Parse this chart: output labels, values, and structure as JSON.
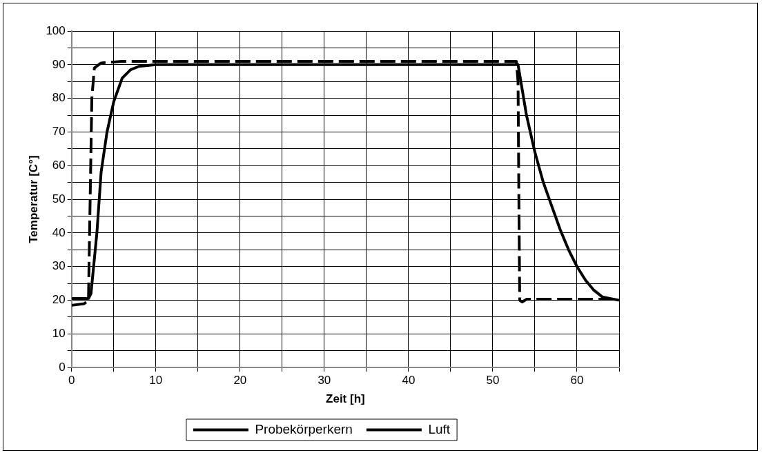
{
  "chart_data": {
    "type": "line",
    "xlabel": "Zeit [h]",
    "ylabel": "Temperatur [C°]",
    "xlim": [
      0,
      65
    ],
    "ylim": [
      0,
      100
    ],
    "xticks": [
      0,
      {
        "value": 5,
        "label": null
      },
      10,
      {
        "value": 15,
        "label": null
      },
      20,
      {
        "value": 25,
        "label": null
      },
      30,
      {
        "value": 35,
        "label": null
      },
      40,
      {
        "value": 45,
        "label": null
      },
      50,
      {
        "value": 55,
        "label": null
      },
      60,
      {
        "value": 65,
        "label": null
      }
    ],
    "yticks": [
      0,
      {
        "value": 5,
        "label": null
      },
      10,
      {
        "value": 15,
        "label": null
      },
      20,
      {
        "value": 25,
        "label": null
      },
      30,
      {
        "value": 35,
        "label": null
      },
      40,
      {
        "value": 45,
        "label": null
      },
      50,
      {
        "value": 55,
        "label": null
      },
      60,
      {
        "value": 65,
        "label": null
      },
      70,
      {
        "value": 75,
        "label": null
      },
      80,
      {
        "value": 85,
        "label": null
      },
      90,
      {
        "value": 95,
        "label": null
      },
      100
    ],
    "grid": true,
    "legend": "bottom",
    "marker": "none",
    "series": [
      {
        "name": "Probekörperkern",
        "color": "#000000",
        "line_style": "solid",
        "x": [
          0,
          2,
          2.3,
          3,
          3.5,
          4.2,
          5,
          6,
          7,
          8,
          10,
          53,
          54,
          55,
          56,
          57,
          58,
          59,
          60,
          61,
          62,
          63,
          64,
          65
        ],
        "values": [
          20.5,
          20.5,
          22,
          40,
          58,
          70,
          79,
          86,
          88.5,
          89.5,
          90,
          90,
          75,
          64,
          55,
          48,
          41,
          35,
          30,
          26,
          23,
          21,
          20.5,
          20
        ]
      },
      {
        "name": "Luft",
        "color": "#000000",
        "line_style": "dashed",
        "x": [
          0,
          1.5,
          2,
          2.2,
          2.4,
          2.7,
          3.5,
          6,
          52.8,
          53,
          53.1,
          53.2,
          53.5,
          54,
          65
        ],
        "values": [
          18.5,
          19,
          20,
          50,
          80,
          89,
          90.5,
          91,
          91,
          85,
          50,
          20,
          19.5,
          20.3,
          20.3
        ]
      }
    ]
  }
}
